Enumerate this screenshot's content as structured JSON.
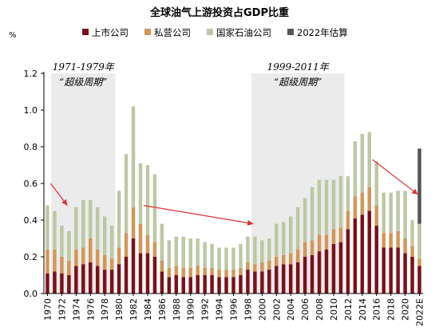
{
  "chart_data": {
    "type": "bar",
    "stacked": true,
    "title": "全球油气上游投资占GDP比重",
    "unit_label": "%",
    "ylim": [
      0,
      1.2
    ],
    "yticks": [
      "0.0",
      "0.2",
      "0.4",
      "0.6",
      "0.8",
      "1.0",
      "1.2"
    ],
    "categories": [
      "1970",
      "1971",
      "1972",
      "1973",
      "1974",
      "1975",
      "1976",
      "1977",
      "1978",
      "1979",
      "1980",
      "1981",
      "1982",
      "1983",
      "1984",
      "1985",
      "1986",
      "1987",
      "1988",
      "1989",
      "1990",
      "1991",
      "1992",
      "1993",
      "1994",
      "1995",
      "1996",
      "1997",
      "1998",
      "1999",
      "2000",
      "2001",
      "2002",
      "2003",
      "2004",
      "2005",
      "2006",
      "2007",
      "2008",
      "2009",
      "2010",
      "2011",
      "2012",
      "2013",
      "2014",
      "2015",
      "2016",
      "2017",
      "2018",
      "2019",
      "2020",
      "2021",
      "2022E"
    ],
    "x_tick_labels": [
      "1970",
      "1972",
      "1974",
      "1976",
      "1978",
      "1980",
      "1982",
      "1984",
      "1986",
      "1988",
      "1990",
      "1992",
      "1994",
      "1996",
      "1998",
      "2000",
      "2002",
      "2004",
      "2006",
      "2008",
      "2010",
      "2012",
      "2014",
      "2016",
      "2018",
      "2020",
      "2022E"
    ],
    "series": [
      {
        "name": "上市公司",
        "color": "#7b1019",
        "values": [
          0.11,
          0.12,
          0.11,
          0.1,
          0.15,
          0.16,
          0.17,
          0.15,
          0.13,
          0.13,
          0.16,
          0.2,
          0.3,
          0.22,
          0.22,
          0.2,
          0.12,
          0.09,
          0.1,
          0.09,
          0.09,
          0.1,
          0.1,
          0.1,
          0.09,
          0.09,
          0.09,
          0.1,
          0.13,
          0.12,
          0.12,
          0.13,
          0.15,
          0.16,
          0.16,
          0.17,
          0.2,
          0.21,
          0.23,
          0.24,
          0.27,
          0.28,
          0.35,
          0.41,
          0.43,
          0.45,
          0.37,
          0.25,
          0.25,
          0.25,
          0.22,
          0.2,
          0.15
        ]
      },
      {
        "name": "私营公司",
        "color": "#d39658",
        "values": [
          0.13,
          0.12,
          0.09,
          0.08,
          0.09,
          0.09,
          0.13,
          0.09,
          0.08,
          0.06,
          0.09,
          0.13,
          0.17,
          0.16,
          0.1,
          0.08,
          0.06,
          0.05,
          0.05,
          0.05,
          0.05,
          0.05,
          0.04,
          0.04,
          0.04,
          0.04,
          0.04,
          0.04,
          0.04,
          0.04,
          0.05,
          0.05,
          0.05,
          0.05,
          0.06,
          0.07,
          0.08,
          0.08,
          0.09,
          0.08,
          0.08,
          0.08,
          0.1,
          0.12,
          0.12,
          0.13,
          0.11,
          0.08,
          0.08,
          0.09,
          0.08,
          0.06,
          0.04
        ]
      },
      {
        "name": "国家石油公司",
        "color": "#bcc8a4",
        "values": [
          0.24,
          0.21,
          0.17,
          0.16,
          0.23,
          0.26,
          0.21,
          0.23,
          0.21,
          0.18,
          0.31,
          0.43,
          0.55,
          0.33,
          0.38,
          0.37,
          0.2,
          0.15,
          0.16,
          0.17,
          0.16,
          0.15,
          0.14,
          0.13,
          0.12,
          0.12,
          0.12,
          0.13,
          0.14,
          0.15,
          0.12,
          0.12,
          0.18,
          0.18,
          0.2,
          0.23,
          0.24,
          0.29,
          0.3,
          0.3,
          0.27,
          0.28,
          0.19,
          0.3,
          0.32,
          0.3,
          0.24,
          0.22,
          0.22,
          0.22,
          0.26,
          0.14,
          0.19
        ]
      },
      {
        "name": "2022年估算",
        "color": "#555555",
        "values": [
          0,
          0,
          0,
          0,
          0,
          0,
          0,
          0,
          0,
          0,
          0,
          0,
          0,
          0,
          0,
          0,
          0,
          0,
          0,
          0,
          0,
          0,
          0,
          0,
          0,
          0,
          0,
          0,
          0,
          0,
          0,
          0,
          0,
          0,
          0,
          0,
          0,
          0,
          0,
          0,
          0,
          0,
          0,
          0,
          0,
          0,
          0,
          0,
          0,
          0,
          0,
          0,
          0.41
        ]
      }
    ],
    "legend_position": "top",
    "annotations": [
      {
        "label_period": "1971-1979年",
        "label_name": "“超级周期”",
        "from": "1971",
        "to": "1979"
      },
      {
        "label_period": "1999-2011年",
        "label_name": "“超级周期”",
        "from": "1999",
        "to": "2011"
      }
    ],
    "shading_color": "#ebebeb",
    "arrow_color": "#e03030"
  }
}
